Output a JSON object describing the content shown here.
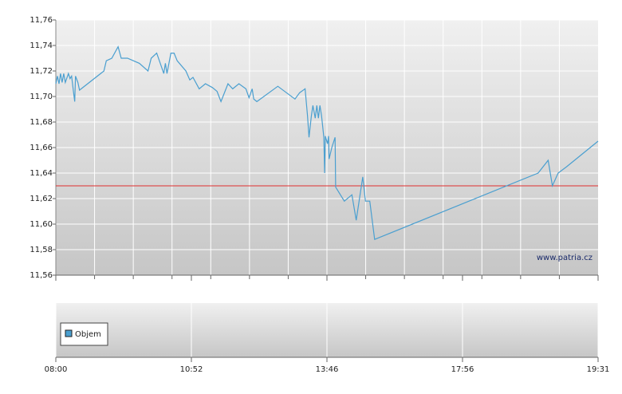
{
  "chart_data": {
    "type": "line",
    "x": [
      "08:00",
      "08:02",
      "08:04",
      "08:06",
      "08:08",
      "08:10",
      "08:12",
      "08:16",
      "08:18",
      "08:20",
      "08:22",
      "08:24",
      "08:25",
      "08:28",
      "08:30",
      "09:01",
      "09:04",
      "09:11",
      "09:19",
      "09:23",
      "09:31",
      "09:46",
      "09:57",
      "10:01",
      "10:08",
      "10:17",
      "10:19",
      "10:21",
      "10:26",
      "10:30",
      "10:34",
      "10:45",
      "10:50",
      "10:54",
      "11:02",
      "11:10",
      "11:19",
      "11:25",
      "11:30",
      "11:39",
      "11:45",
      "11:53",
      "12:02",
      "12:06",
      "12:10",
      "12:12",
      "12:16",
      "12:43",
      "13:05",
      "13:11",
      "13:18",
      "13:21",
      "13:23",
      "13:26",
      "13:28",
      "13:31",
      "13:33",
      "13:35",
      "13:37",
      "13:39",
      "13:42",
      "13:43",
      "13:44",
      "13:47",
      "13:49",
      "13:50",
      "13:55",
      "14:01",
      "14:02",
      "14:18",
      "14:32",
      "14:40",
      "14:52",
      "14:57",
      "15:05",
      "15:14",
      "18:49",
      "18:56",
      "18:59",
      "19:03",
      "19:09",
      "19:31"
    ],
    "series": [
      {
        "color": "#4a9fd0",
        "values": [
          11.71,
          11.716,
          11.71,
          11.718,
          11.711,
          11.718,
          11.711,
          11.718,
          11.714,
          11.716,
          11.706,
          11.696,
          11.716,
          11.711,
          11.705,
          11.72,
          11.728,
          11.73,
          11.739,
          11.73,
          11.73,
          11.726,
          11.72,
          11.73,
          11.734,
          11.718,
          11.726,
          11.718,
          11.734,
          11.734,
          11.728,
          11.72,
          11.713,
          11.715,
          11.706,
          11.71,
          11.707,
          11.704,
          11.696,
          11.71,
          11.706,
          11.71,
          11.706,
          11.699,
          11.706,
          11.698,
          11.696,
          11.708,
          11.698,
          11.703,
          11.706,
          11.685,
          11.668,
          11.685,
          11.693,
          11.683,
          11.693,
          11.683,
          11.693,
          11.685,
          11.668,
          11.64,
          11.669,
          11.663,
          11.669,
          11.651,
          11.66,
          11.668,
          11.629,
          11.618,
          11.623,
          11.603,
          11.637,
          11.618,
          11.618,
          11.588,
          11.64,
          11.65,
          11.63,
          11.64,
          11.645,
          11.665
        ]
      }
    ],
    "reference_line": {
      "value": 11.63,
      "color": "#e03030"
    },
    "ylim": [
      11.56,
      11.76
    ],
    "yticks": [
      {
        "value": 11.56,
        "label": "11,56"
      },
      {
        "value": 11.58,
        "label": "11,58"
      },
      {
        "value": 11.6,
        "label": "11,60"
      },
      {
        "value": 11.62,
        "label": "11,62"
      },
      {
        "value": 11.64,
        "label": "11,64"
      },
      {
        "value": 11.66,
        "label": "11,66"
      },
      {
        "value": 11.68,
        "label": "11,68"
      },
      {
        "value": 11.7,
        "label": "11,70"
      },
      {
        "value": 11.72,
        "label": "11,72"
      },
      {
        "value": 11.74,
        "label": "11,74"
      },
      {
        "value": 11.76,
        "label": "11,76"
      }
    ],
    "xticks": [
      "08:00",
      "10:52",
      "13:46",
      "17:56",
      "19:31"
    ],
    "grid": true,
    "watermark": "www.patria.cz",
    "volume": {
      "name": "Objem",
      "color": "#4a9fd0"
    }
  }
}
